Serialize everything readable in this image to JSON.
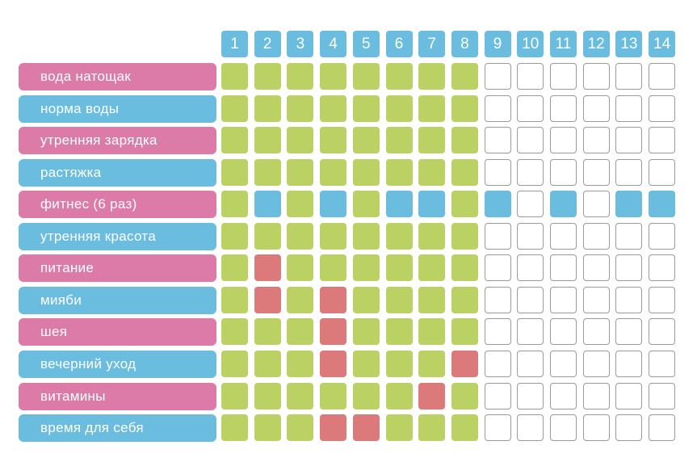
{
  "colors": {
    "header": "#6abddf",
    "label_pink": "#dc7aa8",
    "label_blue": "#6abddf",
    "done": "#bcd163",
    "sport": "#6abddf",
    "missed": "#dc7a7b",
    "empty_fill": "#ffffff",
    "empty_border": "#9a9a9a"
  },
  "days": [
    "1",
    "2",
    "3",
    "4",
    "5",
    "6",
    "7",
    "8",
    "9",
    "10",
    "11",
    "12",
    "13",
    "14"
  ],
  "legend_states": {
    "g": "done",
    "b": "sport",
    "r": "missed",
    "e": "empty"
  },
  "habits": [
    {
      "label": "вода натощак",
      "label_color": "pink",
      "cells": [
        "g",
        "g",
        "g",
        "g",
        "g",
        "g",
        "g",
        "g",
        "e",
        "e",
        "e",
        "e",
        "e",
        "e"
      ]
    },
    {
      "label": "норма воды",
      "label_color": "blue",
      "cells": [
        "g",
        "g",
        "g",
        "g",
        "g",
        "g",
        "g",
        "g",
        "e",
        "e",
        "e",
        "e",
        "e",
        "e"
      ]
    },
    {
      "label": "утренняя зарядка",
      "label_color": "pink",
      "cells": [
        "g",
        "g",
        "g",
        "g",
        "g",
        "g",
        "g",
        "g",
        "e",
        "e",
        "e",
        "e",
        "e",
        "e"
      ]
    },
    {
      "label": "растяжка",
      "label_color": "blue",
      "cells": [
        "g",
        "g",
        "g",
        "g",
        "g",
        "g",
        "g",
        "g",
        "e",
        "e",
        "e",
        "e",
        "e",
        "e"
      ]
    },
    {
      "label": "фитнес (6 раз)",
      "label_color": "pink",
      "cells": [
        "g",
        "b",
        "g",
        "b",
        "g",
        "b",
        "b",
        "g",
        "b",
        "e",
        "b",
        "e",
        "b",
        "b"
      ]
    },
    {
      "label": "утренняя красота",
      "label_color": "blue",
      "cells": [
        "g",
        "g",
        "g",
        "g",
        "g",
        "g",
        "g",
        "g",
        "e",
        "e",
        "e",
        "e",
        "e",
        "e"
      ]
    },
    {
      "label": "питание",
      "label_color": "pink",
      "cells": [
        "g",
        "r",
        "g",
        "g",
        "g",
        "g",
        "g",
        "g",
        "e",
        "e",
        "e",
        "e",
        "e",
        "e"
      ]
    },
    {
      "label": "мияби",
      "label_color": "blue",
      "cells": [
        "g",
        "r",
        "g",
        "r",
        "g",
        "g",
        "g",
        "g",
        "e",
        "e",
        "e",
        "e",
        "e",
        "e"
      ]
    },
    {
      "label": "шея",
      "label_color": "pink",
      "cells": [
        "g",
        "g",
        "g",
        "r",
        "g",
        "g",
        "g",
        "g",
        "e",
        "e",
        "e",
        "e",
        "e",
        "e"
      ]
    },
    {
      "label": "вечерний уход",
      "label_color": "blue",
      "cells": [
        "g",
        "g",
        "g",
        "r",
        "g",
        "g",
        "g",
        "r",
        "e",
        "e",
        "e",
        "e",
        "e",
        "e"
      ]
    },
    {
      "label": "витамины",
      "label_color": "pink",
      "cells": [
        "g",
        "g",
        "g",
        "g",
        "g",
        "g",
        "r",
        "g",
        "e",
        "e",
        "e",
        "e",
        "e",
        "e"
      ]
    },
    {
      "label": "время для себя",
      "label_color": "blue",
      "cells": [
        "g",
        "g",
        "g",
        "r",
        "r",
        "g",
        "g",
        "g",
        "e",
        "e",
        "e",
        "e",
        "e",
        "e"
      ]
    }
  ]
}
